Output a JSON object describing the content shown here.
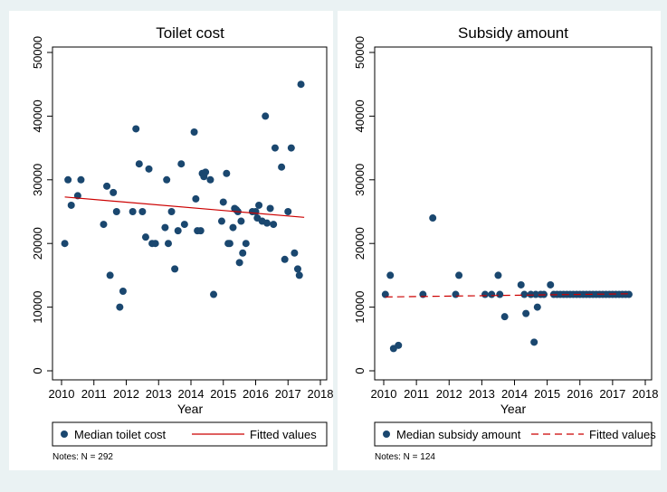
{
  "chart_data": [
    {
      "type": "scatter",
      "title": "Toilet cost",
      "xlabel": "Year",
      "ylabel": "",
      "xlim": [
        2010,
        2018
      ],
      "ylim": [
        0,
        50000
      ],
      "x_ticks": [
        "2010",
        "2011",
        "2012",
        "2013",
        "2014",
        "2015",
        "2016",
        "2017",
        "2018"
      ],
      "y_ticks": [
        "0",
        "10000",
        "20000",
        "30000",
        "40000",
        "50000"
      ],
      "grid": false,
      "legend_position": "bottom",
      "series": [
        {
          "name": "Median toilet cost",
          "marker": "circle",
          "color": "#1a476f",
          "points": [
            [
              2010.1,
              20000
            ],
            [
              2010.2,
              30000
            ],
            [
              2010.3,
              26000
            ],
            [
              2010.5,
              27500
            ],
            [
              2010.6,
              30000
            ],
            [
              2011.3,
              23000
            ],
            [
              2011.4,
              29000
            ],
            [
              2011.5,
              15000
            ],
            [
              2011.6,
              28000
            ],
            [
              2011.7,
              25000
            ],
            [
              2011.8,
              10000
            ],
            [
              2011.9,
              12500
            ],
            [
              2012.2,
              25000
            ],
            [
              2012.3,
              38000
            ],
            [
              2012.4,
              32500
            ],
            [
              2012.5,
              25000
            ],
            [
              2012.6,
              21000
            ],
            [
              2012.7,
              31700
            ],
            [
              2012.8,
              20000
            ],
            [
              2012.9,
              20000
            ],
            [
              2013.2,
              22500
            ],
            [
              2013.25,
              30000
            ],
            [
              2013.3,
              20000
            ],
            [
              2013.4,
              25000
            ],
            [
              2013.5,
              16000
            ],
            [
              2013.6,
              22000
            ],
            [
              2013.7,
              32500
            ],
            [
              2013.8,
              23000
            ],
            [
              2014.1,
              37500
            ],
            [
              2014.15,
              27000
            ],
            [
              2014.2,
              22000
            ],
            [
              2014.3,
              22000
            ],
            [
              2014.35,
              31000
            ],
            [
              2014.4,
              30500
            ],
            [
              2014.45,
              31200
            ],
            [
              2014.6,
              30000
            ],
            [
              2014.7,
              12000
            ],
            [
              2014.95,
              23500
            ],
            [
              2015.0,
              26500
            ],
            [
              2015.1,
              31000
            ],
            [
              2015.15,
              20000
            ],
            [
              2015.2,
              20000
            ],
            [
              2015.3,
              22500
            ],
            [
              2015.35,
              25500
            ],
            [
              2015.4,
              25300
            ],
            [
              2015.45,
              25000
            ],
            [
              2015.5,
              17000
            ],
            [
              2015.55,
              23500
            ],
            [
              2015.6,
              18500
            ],
            [
              2015.7,
              20000
            ],
            [
              2015.9,
              25000
            ],
            [
              2016.0,
              25000
            ],
            [
              2016.05,
              24000
            ],
            [
              2016.1,
              26000
            ],
            [
              2016.2,
              23500
            ],
            [
              2016.3,
              40000
            ],
            [
              2016.35,
              23200
            ],
            [
              2016.45,
              25500
            ],
            [
              2016.55,
              23000
            ],
            [
              2016.6,
              35000
            ],
            [
              2016.8,
              32000
            ],
            [
              2016.9,
              17500
            ],
            [
              2017.0,
              25000
            ],
            [
              2017.1,
              35000
            ],
            [
              2017.2,
              18500
            ],
            [
              2017.3,
              16000
            ],
            [
              2017.35,
              15000
            ],
            [
              2017.4,
              45000
            ]
          ]
        },
        {
          "name": "Fitted values",
          "type": "line",
          "style": "solid",
          "color": "#cc0000",
          "points": [
            [
              2010.1,
              27300
            ],
            [
              2017.5,
              24100
            ]
          ]
        }
      ],
      "note": "Notes: N = 292"
    },
    {
      "type": "scatter",
      "title": "Subsidy amount",
      "xlabel": "Year",
      "ylabel": "",
      "xlim": [
        2010,
        2018
      ],
      "ylim": [
        0,
        50000
      ],
      "x_ticks": [
        "2010",
        "2011",
        "2012",
        "2013",
        "2014",
        "2015",
        "2016",
        "2017",
        "2018"
      ],
      "y_ticks": [
        "0",
        "10000",
        "20000",
        "30000",
        "40000",
        "50000"
      ],
      "grid": false,
      "legend_position": "bottom",
      "series": [
        {
          "name": "Median subsidy amount",
          "marker": "circle",
          "color": "#1a476f",
          "points": [
            [
              2010.05,
              12000
            ],
            [
              2010.2,
              15000
            ],
            [
              2010.3,
              3500
            ],
            [
              2010.45,
              4000
            ],
            [
              2011.2,
              12000
            ],
            [
              2011.5,
              24000
            ],
            [
              2012.2,
              12000
            ],
            [
              2012.3,
              15000
            ],
            [
              2013.1,
              12000
            ],
            [
              2013.3,
              12000
            ],
            [
              2013.5,
              15000
            ],
            [
              2013.55,
              12000
            ],
            [
              2013.7,
              8500
            ],
            [
              2014.2,
              13500
            ],
            [
              2014.3,
              12000
            ],
            [
              2014.35,
              9000
            ],
            [
              2014.5,
              12000
            ],
            [
              2014.6,
              4500
            ],
            [
              2014.65,
              12000
            ],
            [
              2014.7,
              10000
            ],
            [
              2014.8,
              12000
            ],
            [
              2014.9,
              12000
            ],
            [
              2015.1,
              13500
            ],
            [
              2015.2,
              12000
            ],
            [
              2015.3,
              12000
            ],
            [
              2015.4,
              12000
            ],
            [
              2015.5,
              12000
            ],
            [
              2015.6,
              12000
            ],
            [
              2015.7,
              12000
            ],
            [
              2015.8,
              12000
            ],
            [
              2015.9,
              12000
            ],
            [
              2016.0,
              12000
            ],
            [
              2016.1,
              12000
            ],
            [
              2016.2,
              12000
            ],
            [
              2016.3,
              12000
            ],
            [
              2016.4,
              12000
            ],
            [
              2016.5,
              12000
            ],
            [
              2016.6,
              12000
            ],
            [
              2016.7,
              12000
            ],
            [
              2016.8,
              12000
            ],
            [
              2016.9,
              12000
            ],
            [
              2017.0,
              12000
            ],
            [
              2017.1,
              12000
            ],
            [
              2017.2,
              12000
            ],
            [
              2017.3,
              12000
            ],
            [
              2017.4,
              12000
            ],
            [
              2017.5,
              12000
            ]
          ]
        },
        {
          "name": "Fitted values",
          "type": "line",
          "style": "dashed",
          "color": "#cc0000",
          "points": [
            [
              2010.05,
              11600
            ],
            [
              2017.5,
              12100
            ]
          ]
        }
      ],
      "note": "Notes: N = 124"
    }
  ]
}
